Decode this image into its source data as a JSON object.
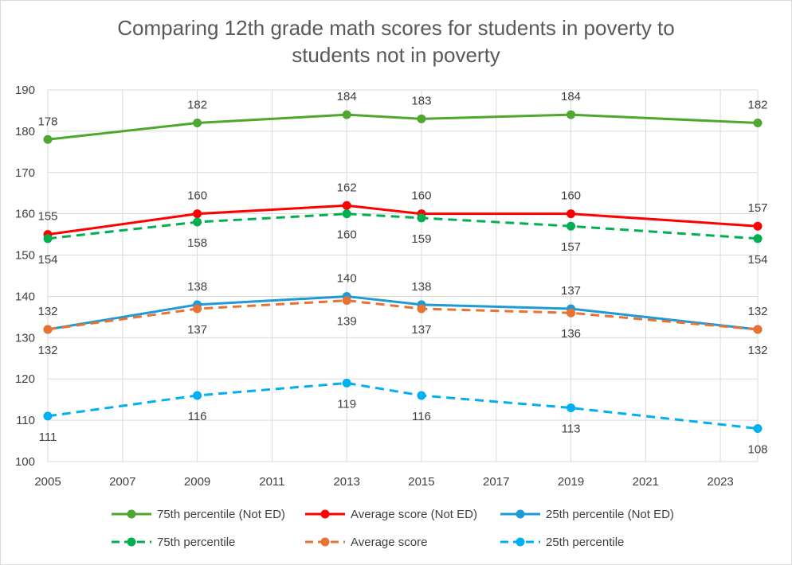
{
  "chart_data": {
    "type": "line",
    "title": "Comparing 12th grade math scores for students in poverty to students not in poverty",
    "title_lines": [
      "Comparing 12th grade math scores for students in poverty to",
      "students not in poverty"
    ],
    "xlabel": "",
    "ylabel": "",
    "xlim": [
      2005,
      2024
    ],
    "ylim": [
      100,
      190
    ],
    "x_ticks": [
      2005,
      2007,
      2009,
      2011,
      2013,
      2015,
      2017,
      2019,
      2021,
      2023
    ],
    "y_ticks": [
      100,
      110,
      120,
      130,
      140,
      150,
      160,
      170,
      180,
      190
    ],
    "grid": true,
    "legend_position": "bottom",
    "series": [
      {
        "name": "75th percentile (Not ED)",
        "color": "#4ea72e",
        "dashed": false,
        "label_pos": "above",
        "x": [
          2005,
          2009,
          2013,
          2015,
          2019,
          2024
        ],
        "y": [
          178,
          182,
          184,
          183,
          184,
          182
        ]
      },
      {
        "name": "Average score (Not ED)",
        "color": "#ff0000",
        "dashed": false,
        "label_pos": "above",
        "x": [
          2005,
          2009,
          2013,
          2015,
          2019,
          2024
        ],
        "y": [
          155,
          160,
          162,
          160,
          160,
          157
        ]
      },
      {
        "name": "25th percentile (Not ED)",
        "color": "#1e9ad6",
        "dashed": false,
        "label_pos": "above",
        "x": [
          2005,
          2009,
          2013,
          2015,
          2019,
          2024
        ],
        "y": [
          132,
          138,
          140,
          138,
          137,
          132
        ]
      },
      {
        "name": "75th percentile",
        "color": "#00b050",
        "dashed": true,
        "label_pos": "below",
        "x": [
          2005,
          2009,
          2013,
          2015,
          2019,
          2024
        ],
        "y": [
          154,
          158,
          160,
          159,
          157,
          154
        ]
      },
      {
        "name": "Average score",
        "color": "#e97132",
        "dashed": true,
        "label_pos": "below",
        "x": [
          2005,
          2009,
          2013,
          2015,
          2019,
          2024
        ],
        "y": [
          132,
          137,
          139,
          137,
          136,
          132
        ]
      },
      {
        "name": "25th percentile",
        "color": "#00b0f0",
        "dashed": true,
        "label_pos": "below",
        "x": [
          2005,
          2009,
          2013,
          2015,
          2019,
          2024
        ],
        "y": [
          111,
          116,
          119,
          116,
          113,
          108
        ]
      }
    ]
  }
}
